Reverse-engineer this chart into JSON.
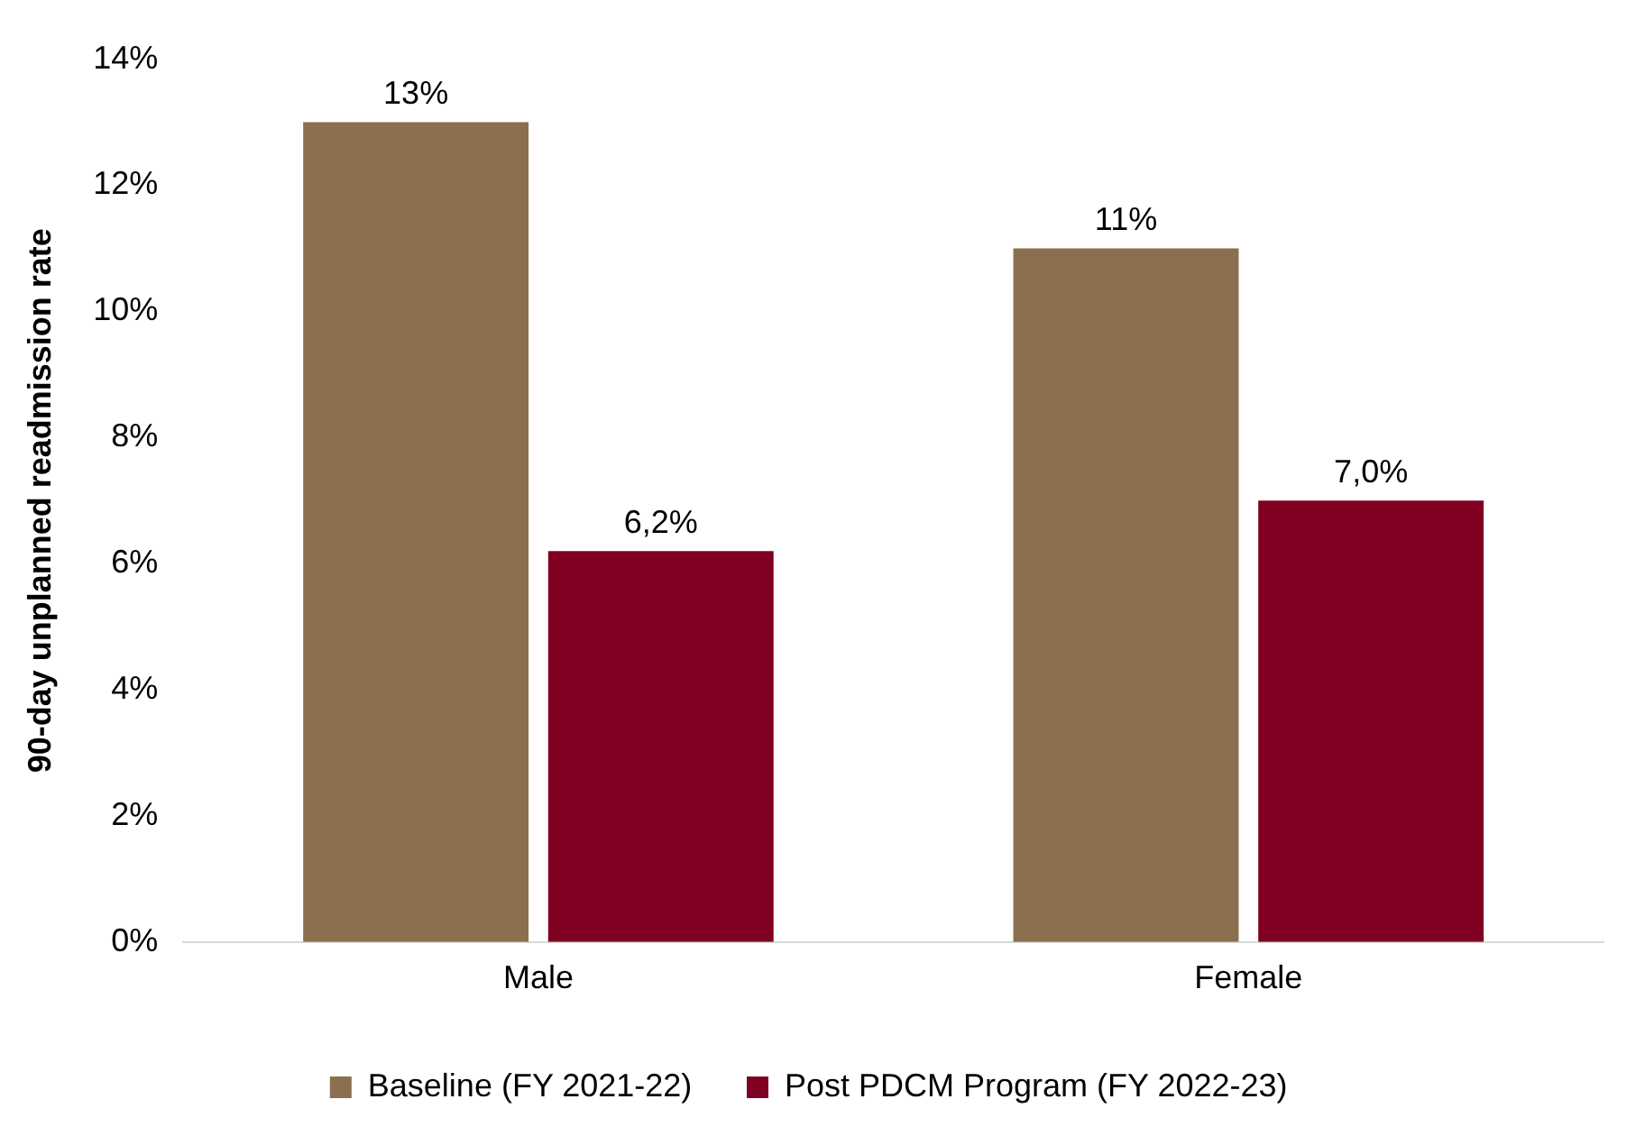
{
  "chart_data": {
    "type": "bar",
    "ylabel": "90-day unplanned readmission rate",
    "categories": [
      "Male",
      "Female"
    ],
    "series": [
      {
        "name": "Baseline (FY 2021-22)",
        "color": "#8b6f4e",
        "values": [
          13,
          11
        ],
        "value_labels": [
          "13%",
          "11%"
        ]
      },
      {
        "name": "Post PDCM Program (FY 2022-23)",
        "color": "#7f0020",
        "values": [
          6.2,
          7.0
        ],
        "value_labels": [
          "6,2%",
          "7,0%"
        ]
      }
    ],
    "ylim": [
      0,
      14
    ],
    "yticks": [
      {
        "value": 0,
        "label": "0%"
      },
      {
        "value": 2,
        "label": "2%"
      },
      {
        "value": 4,
        "label": "4%"
      },
      {
        "value": 6,
        "label": "6%"
      },
      {
        "value": 8,
        "label": "8%"
      },
      {
        "value": 10,
        "label": "10%"
      },
      {
        "value": 12,
        "label": "12%"
      },
      {
        "value": 14,
        "label": "14%"
      }
    ],
    "grid": false,
    "legend": "bottom"
  }
}
